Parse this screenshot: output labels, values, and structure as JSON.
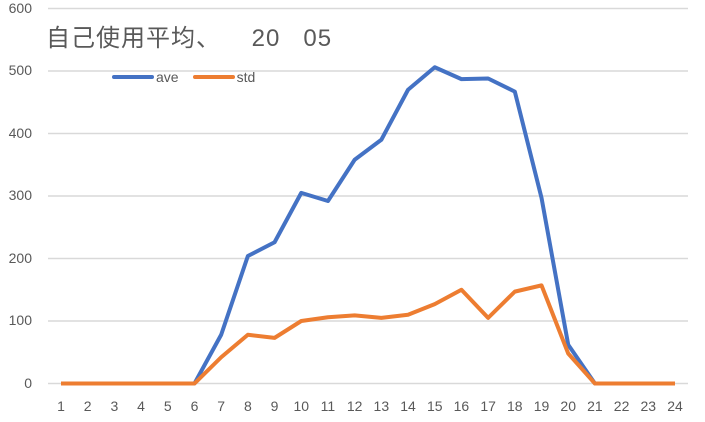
{
  "chart_data": {
    "type": "line",
    "title": "自己使用平均、    20   05",
    "xlabel": "",
    "ylabel": "",
    "ylim": [
      0,
      600
    ],
    "yticks": [
      0,
      100,
      200,
      300,
      400,
      500,
      600
    ],
    "grid": true,
    "legend_position": "top-left",
    "categories": [
      "1",
      "2",
      "3",
      "4",
      "5",
      "6",
      "7",
      "8",
      "9",
      "10",
      "11",
      "12",
      "13",
      "14",
      "15",
      "16",
      "17",
      "18",
      "19",
      "20",
      "21",
      "22",
      "23",
      "24"
    ],
    "series": [
      {
        "name": "ave",
        "color": "#4472C4",
        "values": [
          0,
          0,
          0,
          0,
          0,
          0,
          78,
          204,
          226,
          305,
          292,
          358,
          390,
          470,
          506,
          487,
          488,
          467,
          297,
          62,
          0,
          0,
          0,
          0
        ]
      },
      {
        "name": "std",
        "color": "#ED7D31",
        "values": [
          0,
          0,
          0,
          0,
          0,
          0,
          42,
          78,
          73,
          100,
          106,
          109,
          105,
          110,
          127,
          150,
          105,
          147,
          157,
          48,
          0,
          0,
          0,
          0
        ]
      }
    ]
  }
}
